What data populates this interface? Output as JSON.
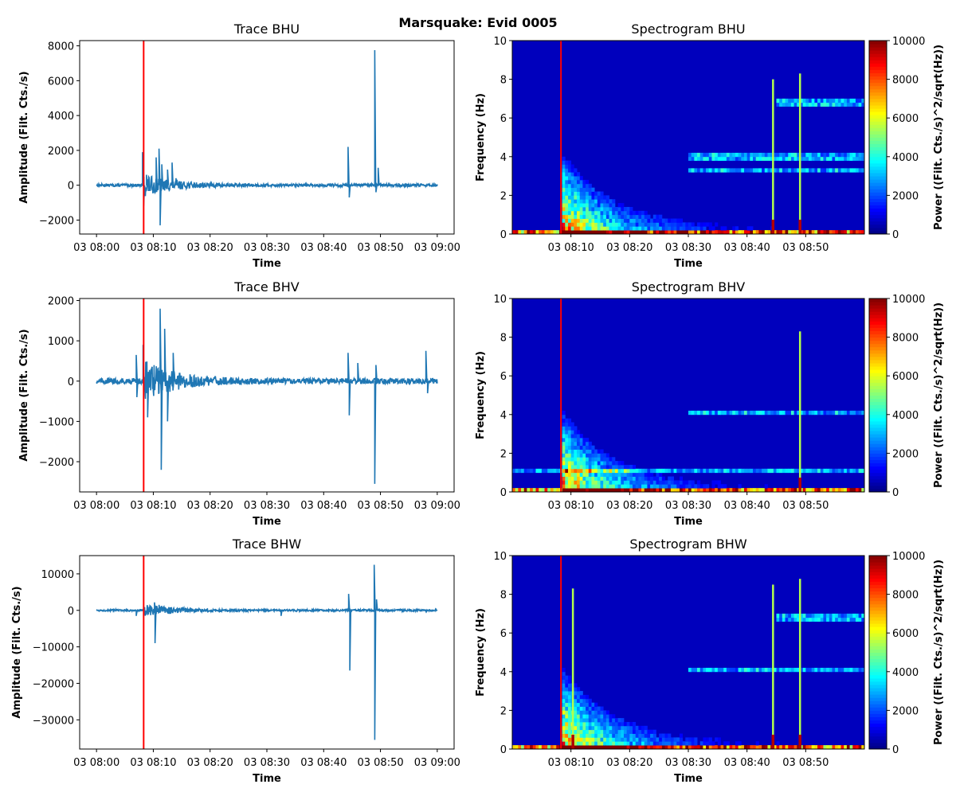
{
  "figure_title": "Marsquake: Evid 0005",
  "chart_data": [
    {
      "type": "line",
      "title": "Trace BHU",
      "xlabel": "Time",
      "ylabel": "Amplitude (Filt. Cts./s)",
      "xlim": [
        "03 08:00",
        "03 09:00"
      ],
      "ylim": [
        -2800,
        8300
      ],
      "x_ticks": [
        "03 08:00",
        "03 08:10",
        "03 08:20",
        "03 08:30",
        "03 08:40",
        "03 08:50",
        "03 09:00"
      ],
      "y_ticks": [
        -2000,
        0,
        2000,
        4000,
        6000,
        8000
      ],
      "arrival_time": "03 08:08.3",
      "line_color": "#1f77b4",
      "marker_color": "#ff0000",
      "noise_amplitude": 80,
      "series": [
        {
          "values": [
            [
              8.0,
              0
            ],
            [
              8.1,
              1900
            ],
            [
              8.3,
              -1200
            ],
            [
              8.8,
              600
            ],
            [
              10.5,
              1600
            ],
            [
              11.0,
              2100
            ],
            [
              11.2,
              -2300
            ],
            [
              11.5,
              1200
            ],
            [
              12.5,
              900
            ],
            [
              13.3,
              1300
            ],
            [
              14.0,
              400
            ],
            [
              44.3,
              2200
            ],
            [
              44.5,
              -700
            ],
            [
              49.0,
              7750
            ],
            [
              49.2,
              -400
            ],
            [
              49.6,
              1000
            ]
          ]
        }
      ]
    },
    {
      "type": "heatmap",
      "title": "Spectrogram BHU",
      "xlabel": "Time",
      "ylabel": "Frequency (Hz)",
      "xlim": [
        "03 08:00",
        "03 09:00"
      ],
      "ylim": [
        0,
        10
      ],
      "x_ticks": [
        "03 08:10",
        "03 08:20",
        "03 08:30",
        "03 08:40",
        "03 08:50"
      ],
      "y_ticks": [
        0,
        2,
        4,
        6,
        8,
        10
      ],
      "colorbar": {
        "label": "Power ((Filt. Cts./s)^2/sqrt(Hz))",
        "range": [
          0,
          10000
        ],
        "ticks": [
          0,
          2000,
          4000,
          6000,
          8000,
          10000
        ],
        "colormap": "jet"
      },
      "arrival_time": "03 08:08.3",
      "marker_color": "#ff0000",
      "event_onsets": [
        8.3
      ],
      "spikes": [
        [
          44.4,
          8.0
        ],
        [
          49.0,
          8.3
        ]
      ],
      "tones": [
        [
          4.0,
          30,
          60
        ],
        [
          3.25,
          30,
          60
        ],
        [
          6.8,
          45,
          60
        ]
      ]
    },
    {
      "type": "line",
      "title": "Trace BHV",
      "xlabel": "Time",
      "ylabel": "Amplitude (Filt. Cts./s)",
      "xlim": [
        "03 08:00",
        "03 09:00"
      ],
      "ylim": [
        -2750,
        2050
      ],
      "x_ticks": [
        "03 08:00",
        "03 08:10",
        "03 08:20",
        "03 08:30",
        "03 08:40",
        "03 08:50",
        "03 09:00"
      ],
      "y_ticks": [
        -2000,
        -1000,
        0,
        1000,
        2000
      ],
      "arrival_time": "03 08:08.3",
      "line_color": "#1f77b4",
      "marker_color": "#ff0000",
      "noise_amplitude": 70,
      "series": [
        {
          "values": [
            [
              7.0,
              650
            ],
            [
              7.1,
              -400
            ],
            [
              8.2,
              900
            ],
            [
              9.0,
              -900
            ],
            [
              11.2,
              1800
            ],
            [
              11.4,
              -2200
            ],
            [
              12.0,
              1300
            ],
            [
              12.5,
              -1000
            ],
            [
              13.5,
              700
            ],
            [
              44.3,
              700
            ],
            [
              44.5,
              -850
            ],
            [
              46.0,
              450
            ],
            [
              49.0,
              -2550
            ],
            [
              49.2,
              400
            ],
            [
              58.0,
              750
            ],
            [
              58.3,
              -300
            ]
          ]
        }
      ]
    },
    {
      "type": "heatmap",
      "title": "Spectrogram BHV",
      "xlabel": "Time",
      "ylabel": "Frequency (Hz)",
      "xlim": [
        "03 08:00",
        "03 09:00"
      ],
      "ylim": [
        0,
        10
      ],
      "x_ticks": [
        "03 08:10",
        "03 08:20",
        "03 08:30",
        "03 08:40",
        "03 08:50"
      ],
      "y_ticks": [
        0,
        2,
        4,
        6,
        8,
        10
      ],
      "colorbar": {
        "label": "Power ((Filt. Cts./s)^2/sqrt(Hz))",
        "range": [
          0,
          10000
        ],
        "ticks": [
          0,
          2000,
          4000,
          6000,
          8000,
          10000
        ],
        "colormap": "jet"
      },
      "arrival_time": "03 08:08.3",
      "marker_color": "#ff0000",
      "event_onsets": [
        8.3
      ],
      "spikes": [
        [
          49.0,
          8.3
        ]
      ],
      "tones": [
        [
          1.05,
          0,
          60
        ],
        [
          4.05,
          30,
          60
        ]
      ]
    },
    {
      "type": "line",
      "title": "Trace BHW",
      "xlabel": "Time",
      "ylabel": "Amplitude (Filt. Cts./s)",
      "xlim": [
        "03 08:00",
        "03 09:00"
      ],
      "ylim": [
        -38000,
        15000
      ],
      "x_ticks": [
        "03 08:00",
        "03 08:10",
        "03 08:20",
        "03 08:30",
        "03 08:40",
        "03 08:50",
        "03 09:00"
      ],
      "y_ticks": [
        -30000,
        -20000,
        -10000,
        0,
        10000
      ],
      "arrival_time": "03 08:08.3",
      "line_color": "#1f77b4",
      "marker_color": "#ff0000",
      "noise_amplitude": 250,
      "series": [
        {
          "values": [
            [
              7.0,
              -1500
            ],
            [
              10.2,
              2200
            ],
            [
              10.3,
              -9000
            ],
            [
              11.0,
              1500
            ],
            [
              12.0,
              900
            ],
            [
              32.5,
              -1500
            ],
            [
              44.4,
              4500
            ],
            [
              44.6,
              -16500
            ],
            [
              48.9,
              12500
            ],
            [
              49.0,
              -35500
            ],
            [
              49.3,
              3000
            ]
          ]
        }
      ]
    },
    {
      "type": "heatmap",
      "title": "Spectrogram BHW",
      "xlabel": "Time",
      "ylabel": "Frequency (Hz)",
      "xlim": [
        "03 08:00",
        "03 09:00"
      ],
      "ylim": [
        0,
        10
      ],
      "x_ticks": [
        "03 08:10",
        "03 08:20",
        "03 08:30",
        "03 08:40",
        "03 08:50"
      ],
      "y_ticks": [
        0,
        2,
        4,
        6,
        8,
        10
      ],
      "colorbar": {
        "label": "Power ((Filt. Cts./s)^2/sqrt(Hz))",
        "range": [
          0,
          10000
        ],
        "ticks": [
          0,
          2000,
          4000,
          6000,
          8000,
          10000
        ],
        "colormap": "jet"
      },
      "arrival_time": "03 08:08.3",
      "marker_color": "#ff0000",
      "event_onsets": [
        8.3
      ],
      "spikes": [
        [
          10.3,
          8.3
        ],
        [
          44.4,
          8.5
        ],
        [
          49.0,
          8.8
        ]
      ],
      "tones": [
        [
          4.05,
          30,
          60
        ],
        [
          6.8,
          45,
          60
        ]
      ]
    }
  ]
}
